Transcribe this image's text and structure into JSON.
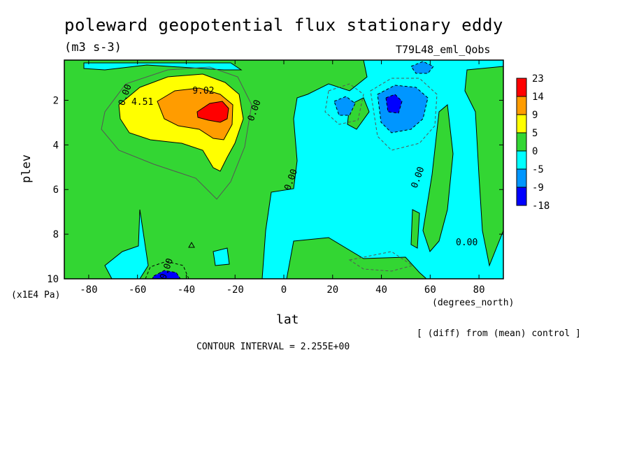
{
  "header": {
    "title": "poleward geopotential flux stationary eddy",
    "units": "(m3 s-3)",
    "run_label": "T79L48_eml_Qobs"
  },
  "footer": {
    "diff_note": "[ (diff) from (mean) control ]",
    "contour_interval": "CONTOUR INTERVAL = 2.255E+00"
  },
  "chart_data": {
    "type": "heatmap",
    "title": "poleward geopotential flux stationary eddy",
    "xlabel": "lat",
    "x_unit": "(degrees_north)",
    "ylabel": "plev",
    "y_unit": "(x1E4 Pa)",
    "xlim": [
      -90,
      90
    ],
    "ylim": [
      10,
      0.2
    ],
    "x_ticks": [
      -80,
      -60,
      -40,
      -20,
      0,
      20,
      40,
      60,
      80
    ],
    "y_ticks": [
      2,
      4,
      6,
      8,
      10
    ],
    "colorbar": {
      "levels": [
        23,
        14,
        9,
        5,
        0,
        -5,
        -9,
        -18
      ],
      "colors": [
        "#ff0000",
        "#ff9c00",
        "#ffff00",
        "#33d633",
        "#00ffff",
        "#0096ff",
        "#0000ff"
      ]
    },
    "contour_labels": [
      {
        "text": "4.51",
        "lat": -58,
        "plev": 2.2
      },
      {
        "text": "9.02",
        "lat": -33,
        "plev": 1.7
      },
      {
        "text": "0.00",
        "lat": -64,
        "plev": 1.8
      },
      {
        "text": "0.00",
        "lat": -11,
        "plev": 2.5
      },
      {
        "text": "0.00",
        "lat": 4,
        "plev": 5.6
      },
      {
        "text": "0.00",
        "lat": -47,
        "plev": 9.6
      },
      {
        "text": "0.00",
        "lat": 56,
        "plev": 5.5
      },
      {
        "text": "0.00",
        "lat": 75,
        "plev": 8.5
      }
    ],
    "features": [
      {
        "description": "positive maximum",
        "lat": -27,
        "plev": 2.3,
        "value": 23
      },
      {
        "description": "negative minimum",
        "lat": 42,
        "plev": 2.1,
        "value": -9
      },
      {
        "description": "negative minimum",
        "lat": 22,
        "plev": 2.1,
        "value": -5
      },
      {
        "description": "negative minimum",
        "lat": -46,
        "plev": 9.9,
        "value": -9
      },
      {
        "description": "negative minimum",
        "lat": 57,
        "plev": 0.5,
        "value": -5
      }
    ]
  }
}
